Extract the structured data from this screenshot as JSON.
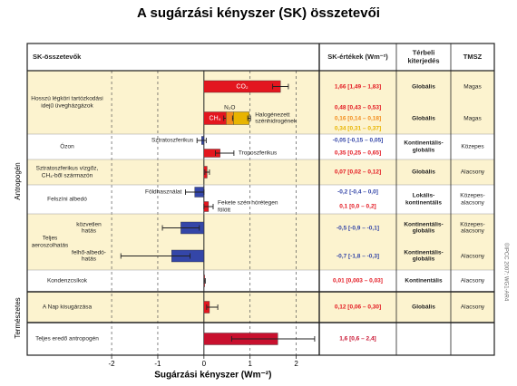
{
  "chart_data": {
    "type": "bar",
    "title": "A sugárzási kényszer (SK) összetevői",
    "headers": [
      "SK-összetevők",
      "SK-értékek (Wm⁻²)",
      "Térbeli kiterjedés",
      "TMSZ"
    ],
    "side_labels": [
      "Antropogén",
      "Természetes"
    ],
    "xlabel": "Sugárzási kényszer (Wm⁻²)",
    "xlim": [
      -2.1,
      2.5
    ],
    "xticks": [
      -2,
      -1,
      0,
      1,
      2
    ],
    "credit": "©IPCC 2007: WG1-AR4",
    "rows": [
      {
        "name": "Hosszú légköri tartózkodási idejű üvegházgázok",
        "subrows": [
          {
            "extent": "Globális",
            "confidence": "Magas",
            "items": [
              {
                "label": "CO₂",
                "value": 1.66,
                "range": [
                  1.49,
                  1.83
                ],
                "value_label": "1,66 [1,49 – 1,83]",
                "color": "#e3161f"
              }
            ]
          },
          {
            "extent": "Globális",
            "confidence": "Magas",
            "items": [
              {
                "label": "CH₄",
                "value": 0.48,
                "range": [
                  0.43,
                  0.53
                ],
                "value_label": "0,48 [0,43 – 0,53]",
                "color": "#e3161f"
              },
              {
                "label": "N₂O",
                "value": 0.16,
                "range": [
                  0.14,
                  0.18
                ],
                "value_label": "0,16 [0,14 – 0,18]",
                "color": "#f28c1c"
              },
              {
                "label": "Halogénezett szénhidrogének",
                "value": 0.34,
                "range": [
                  0.31,
                  0.37
                ],
                "value_label": "0,34 [0,31 – 0,37]",
                "color": "#e8b400"
              }
            ]
          }
        ]
      },
      {
        "name": "Ózon",
        "subrows": [
          {
            "extent": "Kontinentális-globális",
            "confidence": "Közepes",
            "items": [
              {
                "label": "Sztratoszferikus",
                "value": -0.05,
                "range": [
                  -0.15,
                  0.05
                ],
                "value_label": "-0,05 [-0,15 – 0,05]",
                "color": "#3446a8"
              },
              {
                "label": "Troposzferikus",
                "value": 0.35,
                "range": [
                  0.25,
                  0.65
                ],
                "value_label": "0,35 [0,25 – 0,65]",
                "color": "#e3161f"
              }
            ]
          }
        ]
      },
      {
        "name": "Sztratoszferikus vízgőz, CH₄-ből származón",
        "subrows": [
          {
            "extent": "Globális",
            "confidence": "Alacsony",
            "items": [
              {
                "value": 0.07,
                "range": [
                  0.02,
                  0.12
                ],
                "value_label": "0,07 [0,02 – 0,12]",
                "color": "#e3161f"
              }
            ]
          }
        ]
      },
      {
        "name": "Felszíni albedó",
        "subrows": [
          {
            "extent": "Lokális-kontinentális",
            "confidence": "Közepes-alacsony",
            "items": [
              {
                "label": "Földhasználat",
                "value": -0.2,
                "range": [
                  -0.4,
                  0.0
                ],
                "value_label": "-0,2 [-0,4 – 0,0]",
                "color": "#3446a8"
              },
              {
                "label": "Fekete szén hórétegen fölött",
                "value": 0.1,
                "range": [
                  0.0,
                  0.2
                ],
                "value_label": "0,1 [0,0 – 0,2]",
                "color": "#e3161f"
              }
            ]
          }
        ]
      },
      {
        "name": "Teljes aeroszolhatás",
        "subrows": [
          {
            "name": "közvetlen hatás",
            "extent": "Kontinentális-globális",
            "confidence": "Közepes-alacsony",
            "items": [
              {
                "value": -0.5,
                "range": [
                  -0.9,
                  -0.1
                ],
                "value_label": "-0,5 [-0,9 – -0,1]",
                "color": "#3446a8"
              }
            ]
          },
          {
            "name": "felhő-albedó-hatás",
            "extent": "Kontinentális-globális",
            "confidence": "Alacsony",
            "items": [
              {
                "value": -0.7,
                "range": [
                  -1.8,
                  -0.3
                ],
                "value_label": "-0,7 [-1,8 – -0,3]",
                "color": "#3446a8"
              }
            ]
          }
        ]
      },
      {
        "name": "Kondenzcsíkok",
        "subrows": [
          {
            "extent": "Kontinentális",
            "confidence": "Alacsony",
            "items": [
              {
                "value": 0.01,
                "range": [
                  0.003,
                  0.03
                ],
                "value_label": "0,01 [0,003 – 0,03]",
                "color": "#e3161f"
              }
            ]
          }
        ]
      },
      {
        "name": "A Nap kisugárzása",
        "subrows": [
          {
            "extent": "Globális",
            "confidence": "Alacsony",
            "items": [
              {
                "value": 0.12,
                "range": [
                  0.06,
                  0.3
                ],
                "value_label": "0,12 [0,06 – 0,30]",
                "color": "#e3161f"
              }
            ]
          }
        ]
      },
      {
        "name": "Teljes eredő antropogén",
        "subrows": [
          {
            "items": [
              {
                "value": 1.6,
                "range": [
                  0.6,
                  2.4
                ],
                "value_label": "1,6 [0,6 – 2,4]",
                "color": "#c8102e"
              }
            ]
          }
        ]
      }
    ]
  }
}
